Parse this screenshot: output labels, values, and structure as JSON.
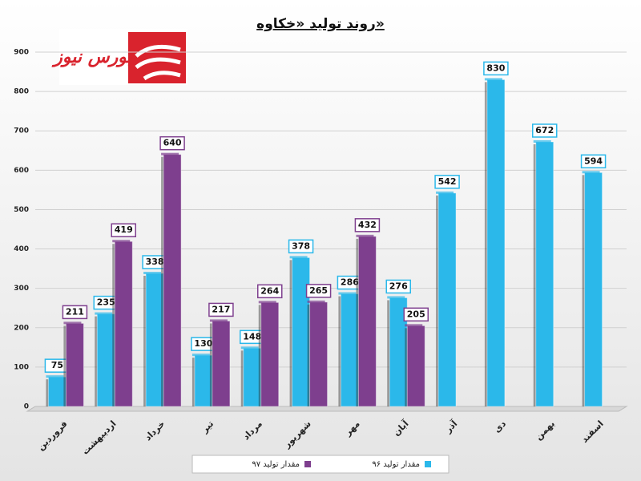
{
  "logo": "بورس نیوز",
  "chart_data": {
    "type": "bar",
    "title": "روند تولید «خکاوه»",
    "categories": [
      "فروردین",
      "اردیبهشت",
      "خرداد",
      "تیر",
      "مرداد",
      "شهریور",
      "مهر",
      "آبان",
      "آذر",
      "دی",
      "بهمن",
      "اسفند"
    ],
    "series": [
      {
        "name": "مقدار تولید ۹۶",
        "color": "#2bb8ea",
        "values": [
          75,
          235,
          338,
          130,
          148,
          378,
          286,
          276,
          542,
          830,
          672,
          594
        ]
      },
      {
        "name": "مقدار تولید ۹۷",
        "color": "#7e3f8e",
        "values": [
          211,
          419,
          640,
          217,
          264,
          265,
          432,
          205,
          null,
          null,
          null,
          null
        ]
      }
    ],
    "ylim": [
      0,
      900
    ],
    "yticks": [
      0,
      100,
      200,
      300,
      400,
      500,
      600,
      700,
      800,
      900
    ],
    "grid": true,
    "legend": "bottom"
  }
}
